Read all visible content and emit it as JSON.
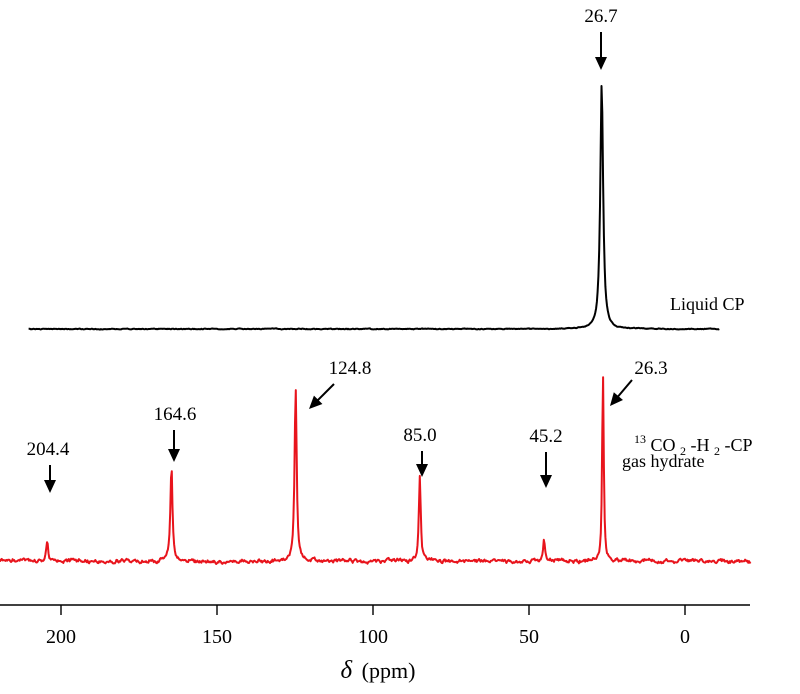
{
  "chart_data": {
    "type": "line",
    "xlabel": "δ (ppm)",
    "xlabel_symbol": "δ",
    "xlabel_unit": "(ppm)",
    "xlim": [
      220,
      -20
    ],
    "x_reversed": true,
    "x_ticks": [
      200,
      150,
      100,
      50,
      0
    ],
    "grid": false,
    "series": [
      {
        "name": "Liquid CP",
        "color": "#000000",
        "peaks": [
          {
            "x": 26.7,
            "label": "26.7",
            "height": 1.0,
            "width": 1.1
          }
        ]
      },
      {
        "name_parts": {
          "superscript": "13",
          "part1": "CO",
          "subscript1": "2",
          "part2": "-H",
          "subscript2": "2",
          "part3": "-CP"
        },
        "name_line2": "gas hydrate",
        "color": "#e8141c",
        "peaks": [
          {
            "x": 204.4,
            "label": "204.4",
            "height": 0.09,
            "width": 0.7
          },
          {
            "x": 164.6,
            "label": "164.6",
            "height": 0.44,
            "width": 0.8
          },
          {
            "x": 124.8,
            "label": "124.8",
            "height": 0.83,
            "width": 0.8
          },
          {
            "x": 85.0,
            "label": "85.0",
            "height": 0.4,
            "width": 0.7
          },
          {
            "x": 45.2,
            "label": "45.2",
            "height": 0.1,
            "width": 0.7
          },
          {
            "x": 26.3,
            "label": "26.3",
            "height": 0.92,
            "width": 0.6
          }
        ]
      }
    ]
  }
}
